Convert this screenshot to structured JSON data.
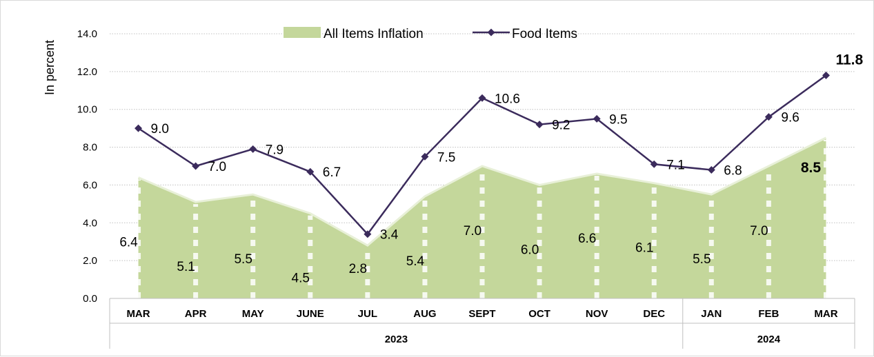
{
  "chart_data": {
    "type": "area+line",
    "title": "",
    "ylabel": "In percent",
    "ylim": [
      0,
      14
    ],
    "yticks": [
      "0.0",
      "2.0",
      "4.0",
      "6.0",
      "8.0",
      "10.0",
      "12.0",
      "14.0"
    ],
    "categories": [
      "MAR",
      "APR",
      "MAY",
      "JUNE",
      "JUL",
      "AUG",
      "SEPT",
      "OCT",
      "NOV",
      "DEC",
      "JAN",
      "FEB",
      "MAR"
    ],
    "year_groups": [
      {
        "label": "2023",
        "count": 10
      },
      {
        "label": "2024",
        "count": 3
      }
    ],
    "grid": true,
    "legend_position": "top-center",
    "series": [
      {
        "name": "All Items Inflation",
        "kind": "area",
        "color": "#c4d79b",
        "values": [
          6.4,
          5.1,
          5.5,
          4.5,
          2.8,
          5.4,
          7.0,
          6.0,
          6.6,
          6.1,
          5.5,
          7.0,
          8.5
        ],
        "labels": [
          "6.4",
          "5.1",
          "5.5",
          "4.5",
          "2.8",
          "5.4",
          "7.0",
          "6.0",
          "6.6",
          "6.1",
          "5.5",
          "7.0",
          "8.5"
        ]
      },
      {
        "name": "Food Items",
        "kind": "line",
        "color": "#3b2b5c",
        "values": [
          9.0,
          7.0,
          7.9,
          6.7,
          3.4,
          7.5,
          10.6,
          9.2,
          9.5,
          7.1,
          6.8,
          9.6,
          11.8
        ],
        "labels": [
          "9.0",
          "7.0",
          "7.9",
          "6.7",
          "3.4",
          "7.5",
          "10.6",
          "9.2",
          "9.5",
          "7.1",
          "6.8",
          "9.6",
          "11.8"
        ]
      }
    ]
  }
}
